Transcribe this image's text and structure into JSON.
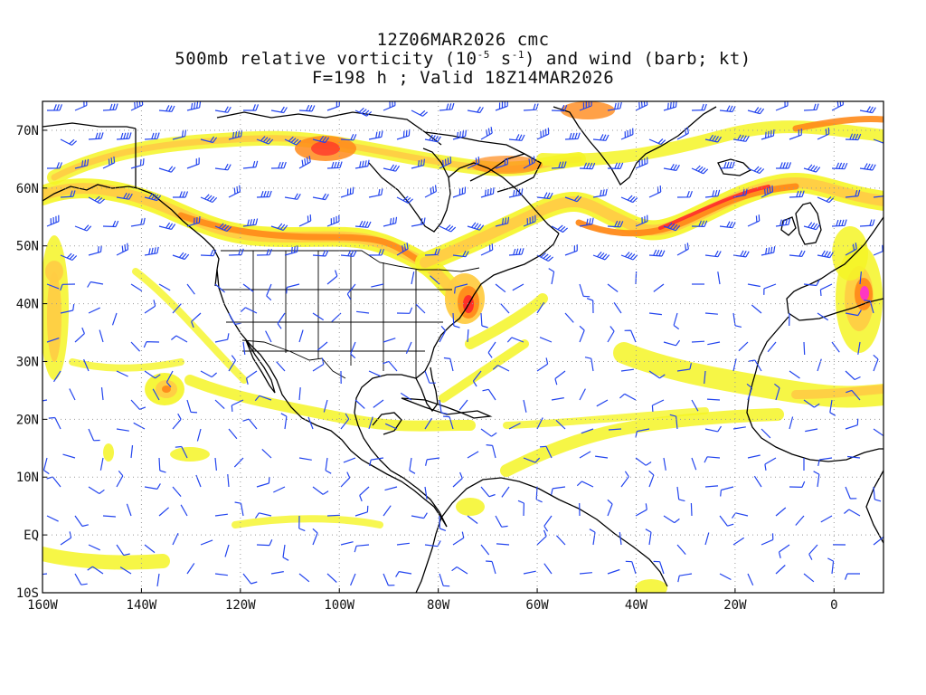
{
  "title": {
    "line1": "12Z06MAR2026 cmc",
    "line2_prefix": "500mb relative vorticity (10",
    "line2_exp1": "-5",
    "line2_mid": " s",
    "line2_exp2": "-1",
    "line2_suffix": ") and wind (barb; kt)",
    "line3": "F=198 h ; Valid 18Z14MAR2026"
  },
  "axes": {
    "lon_range": [
      -160,
      10
    ],
    "lat_range": [
      -10,
      75
    ],
    "x_ticks": [
      "160W",
      "140W",
      "120W",
      "100W",
      "80W",
      "60W",
      "40W",
      "20W",
      "0"
    ],
    "y_ticks": [
      "70N",
      "60N",
      "50N",
      "40N",
      "30N",
      "20N",
      "10N",
      "EQ",
      "10S"
    ],
    "grid": "dotted"
  },
  "colors": {
    "vort_low": "#f5f526",
    "vort_mid": "#ffcc44",
    "vort_high": "#ff8a1a",
    "vort_max": "#ff2a2a",
    "vort_peak": "#ff33cc",
    "barbs": "#2244ee",
    "coastline": "#000000"
  }
}
